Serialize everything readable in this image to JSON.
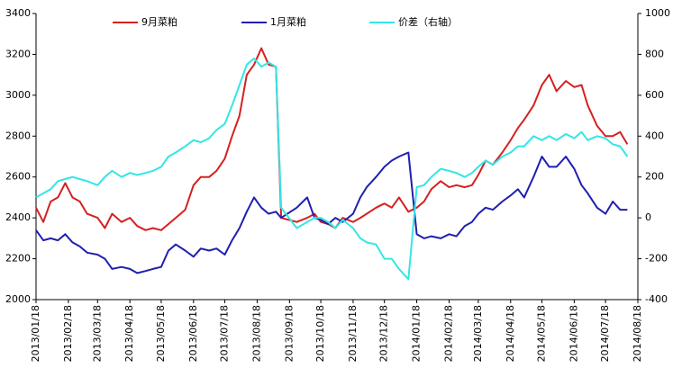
{
  "chart_data": {
    "type": "line",
    "x": [
      "2013/01/18",
      "2013/01/25",
      "2013/02/01",
      "2013/02/08",
      "2013/02/15",
      "2013/02/22",
      "2013/03/01",
      "2013/03/08",
      "2013/03/18",
      "2013/03/25",
      "2013/04/01",
      "2013/04/10",
      "2013/04/18",
      "2013/04/25",
      "2013/05/03",
      "2013/05/10",
      "2013/05/18",
      "2013/05/25",
      "2013/06/01",
      "2013/06/10",
      "2013/06/18",
      "2013/06/25",
      "2013/07/03",
      "2013/07/10",
      "2013/07/18",
      "2013/07/25",
      "2013/08/01",
      "2013/08/08",
      "2013/08/15",
      "2013/08/22",
      "2013/08/29",
      "2013/09/05",
      "2013/09/10",
      "2013/09/25",
      "2013/10/05",
      "2013/10/12",
      "2013/10/18",
      "2013/10/25",
      "2013/11/01",
      "2013/11/08",
      "2013/11/18",
      "2013/11/25",
      "2013/12/01",
      "2013/12/10",
      "2013/12/18",
      "2013/12/25",
      "2014/01/01",
      "2014/01/10",
      "2014/01/18",
      "2014/01/25",
      "2014/02/01",
      "2014/02/10",
      "2014/02/18",
      "2014/02/25",
      "2014/03/05",
      "2014/03/12",
      "2014/03/18",
      "2014/03/25",
      "2014/04/01",
      "2014/04/10",
      "2014/04/18",
      "2014/04/25",
      "2014/05/01",
      "2014/05/10",
      "2014/05/18",
      "2014/05/25",
      "2014/06/01",
      "2014/06/10",
      "2014/06/18",
      "2014/06/25",
      "2014/07/01",
      "2014/07/10",
      "2014/07/18",
      "2014/07/25",
      "2014/08/01",
      "2014/08/08"
    ],
    "series": [
      {
        "name": "9月菜粕",
        "color": "#d62020",
        "values": [
          2450,
          2380,
          2480,
          2500,
          2570,
          2500,
          2480,
          2420,
          2400,
          2350,
          2420,
          2380,
          2400,
          2360,
          2340,
          2350,
          2340,
          2370,
          2400,
          2440,
          2560,
          2600,
          2600,
          2630,
          2690,
          2800,
          2900,
          3100,
          3150,
          3230,
          3150,
          3140,
          2400,
          2380,
          2400,
          2420,
          2380,
          2370,
          2350,
          2400,
          2380,
          2400,
          2420,
          2450,
          2470,
          2450,
          2500,
          2430,
          2450,
          2480,
          2540,
          2580,
          2550,
          2560,
          2550,
          2560,
          2610,
          2680,
          2660,
          2720,
          2780,
          2840,
          2880,
          2950,
          3050,
          3100,
          3020,
          3070,
          3040,
          3050,
          2950,
          2850,
          2800,
          2800,
          2820,
          2760
        ]
      },
      {
        "name": "1月菜粕",
        "color": "#1f1fb0",
        "values": [
          2340,
          2290,
          2300,
          2290,
          2320,
          2280,
          2260,
          2230,
          2220,
          2200,
          2150,
          2160,
          2150,
          2130,
          2140,
          2150,
          2160,
          2240,
          2270,
          2240,
          2210,
          2250,
          2240,
          2250,
          2220,
          2290,
          2350,
          2430,
          2500,
          2450,
          2420,
          2430,
          2400,
          2450,
          2500,
          2400,
          2390,
          2370,
          2400,
          2380,
          2420,
          2500,
          2550,
          2600,
          2650,
          2680,
          2700,
          2720,
          2320,
          2300,
          2310,
          2300,
          2320,
          2310,
          2360,
          2380,
          2420,
          2450,
          2440,
          2480,
          2510,
          2540,
          2500,
          2600,
          2700,
          2650,
          2650,
          2700,
          2640,
          2560,
          2520,
          2450,
          2420,
          2480,
          2440,
          2440
        ]
      },
      {
        "name": "价差（右轴）",
        "color": "#33e6e6",
        "axis": "y2",
        "values": [
          100,
          120,
          140,
          180,
          190,
          200,
          190,
          180,
          160,
          200,
          230,
          200,
          220,
          210,
          220,
          230,
          250,
          300,
          320,
          350,
          380,
          370,
          390,
          430,
          460,
          550,
          650,
          750,
          780,
          740,
          760,
          740,
          50,
          -50,
          -20,
          0,
          0,
          -20,
          -50,
          -10,
          -50,
          -100,
          -120,
          -130,
          -200,
          -200,
          -250,
          -300,
          150,
          160,
          200,
          240,
          230,
          220,
          200,
          220,
          250,
          280,
          260,
          300,
          320,
          350,
          350,
          400,
          380,
          400,
          380,
          410,
          390,
          420,
          380,
          400,
          390,
          360,
          350,
          300
        ]
      }
    ],
    "xlim": [
      "2013/01/18",
      "2014/08/18"
    ],
    "xticks": [
      "2013/01/18",
      "2013/02/18",
      "2013/03/18",
      "2013/04/18",
      "2013/05/18",
      "2013/06/18",
      "2013/07/18",
      "2013/08/18",
      "2013/09/18",
      "2013/10/18",
      "2013/11/18",
      "2013/12/18",
      "2014/01/18",
      "2014/02/18",
      "2014/03/18",
      "2014/04/18",
      "2014/05/18",
      "2014/06/18",
      "2014/07/18",
      "2014/08/18"
    ],
    "ylim": [
      2000,
      3400
    ],
    "yticks": [
      2000,
      2200,
      2400,
      2600,
      2800,
      3000,
      3200,
      3400
    ],
    "y2lim": [
      -400,
      1000
    ],
    "y2ticks": [
      -400,
      -200,
      0,
      200,
      400,
      600,
      800,
      1000
    ],
    "legend": "top",
    "grid": false
  }
}
